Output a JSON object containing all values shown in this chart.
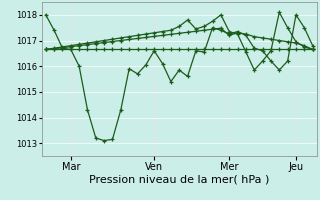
{
  "background_color": "#cceee8",
  "plot_bg_color": "#cceee8",
  "line_color": "#1a5c1a",
  "marker": "+",
  "marker_size": 3.5,
  "linewidth": 0.9,
  "xlabel": "Pression niveau de la mer( hPa )",
  "ylim": [
    1012.5,
    1018.5
  ],
  "yticks": [
    1013,
    1014,
    1015,
    1016,
    1017,
    1018
  ],
  "ytick_fontsize": 6,
  "xtick_fontsize": 7,
  "xlabel_fontsize": 8,
  "grid_color": "#ffffff",
  "grid_linewidth": 0.5,
  "xtick_labels": [
    "Mar",
    "Ven",
    "Mer",
    "Jeu"
  ],
  "n_points": 33,
  "day_positions": [
    3,
    13,
    22,
    30
  ],
  "series": [
    [
      1018.0,
      1017.4,
      1016.7,
      1016.65,
      1016.0,
      1014.3,
      1013.2,
      1013.1,
      1013.15,
      1014.3,
      1015.9,
      1015.7,
      1016.05,
      1016.6,
      1016.1,
      1015.4,
      1015.85,
      1015.6,
      1016.6,
      1016.55,
      1017.5,
      1017.4,
      1017.25,
      1017.35,
      1017.2,
      1016.7,
      1016.6,
      1016.2,
      1015.85,
      1016.2,
      1018.0,
      1017.5,
      1016.8
    ],
    [
      1016.65,
      1016.65,
      1016.65,
      1016.65,
      1016.65,
      1016.65,
      1016.65,
      1016.65,
      1016.65,
      1016.65,
      1016.65,
      1016.65,
      1016.65,
      1016.65,
      1016.65,
      1016.65,
      1016.65,
      1016.65,
      1016.65,
      1016.65,
      1016.65,
      1016.65,
      1016.65,
      1016.65,
      1016.65,
      1016.65,
      1016.65,
      1016.65,
      1016.65,
      1016.65,
      1016.65,
      1016.65,
      1016.65
    ],
    [
      1016.65,
      1016.68,
      1016.72,
      1016.76,
      1016.8,
      1016.84,
      1016.88,
      1016.92,
      1016.96,
      1017.0,
      1017.04,
      1017.08,
      1017.12,
      1017.16,
      1017.2,
      1017.24,
      1017.28,
      1017.32,
      1017.36,
      1017.4,
      1017.44,
      1017.48,
      1017.2,
      1017.3,
      1017.25,
      1017.15,
      1017.1,
      1017.05,
      1017.0,
      1016.95,
      1016.9,
      1016.8,
      1016.65
    ],
    [
      1016.65,
      1016.7,
      1016.75,
      1016.8,
      1016.85,
      1016.9,
      1016.95,
      1017.0,
      1017.05,
      1017.1,
      1017.15,
      1017.2,
      1017.25,
      1017.3,
      1017.35,
      1017.4,
      1017.55,
      1017.8,
      1017.45,
      1017.55,
      1017.75,
      1018.0,
      1017.35,
      1017.25,
      1016.55,
      1015.85,
      1016.2,
      1016.6,
      1018.1,
      1017.5,
      1016.95,
      1016.75,
      1016.65
    ]
  ]
}
